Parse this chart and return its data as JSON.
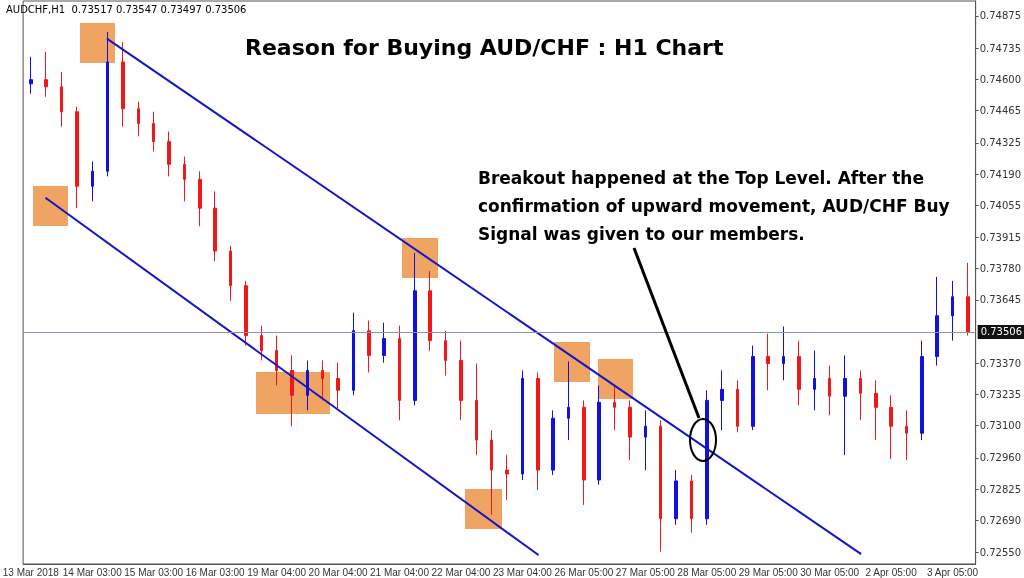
{
  "chart_data": {
    "type": "candlestick",
    "title": "Reason for Buying AUD/CHF : H1 Chart",
    "annotations": [
      "AUDCHF,H1  0.73517 0.73547 0.73497 0.73506",
      "Breakout happened at the Top Level. After the confirmation of upward movement, AUD/CHF Buy Signal was given to our members."
    ],
    "categories": [
      "13 Mar 2018",
      null,
      null,
      null,
      "14 Mar 03:00",
      null,
      null,
      null,
      "15 Mar 03:00",
      null,
      null,
      null,
      "16 Mar 03:00",
      null,
      null,
      null,
      "19 Mar 04:00",
      null,
      null,
      null,
      "20 Mar 04:00",
      null,
      null,
      null,
      "21 Mar 04:00",
      null,
      null,
      null,
      "22 Mar 04:00",
      null,
      null,
      null,
      "23 Mar 04:00",
      null,
      null,
      null,
      "26 Mar 05:00",
      null,
      null,
      null,
      "27 Mar 05:00",
      null,
      null,
      null,
      "28 Mar 05:00",
      null,
      null,
      null,
      "29 Mar 05:00",
      null,
      null,
      null,
      "30 Mar 05:00",
      null,
      null,
      null,
      "2 Apr 05:00",
      null,
      null,
      null,
      "3 Apr 05:00",
      null
    ],
    "colors": [
      "#1010e0",
      "#f01818",
      "#f01818",
      "#f01818",
      "#1010e0",
      "#1010e0",
      "#f01818",
      "#f01818",
      "#f01818",
      "#f01818",
      "#f01818",
      "#f01818",
      "#f01818",
      "#f01818",
      "#f01818",
      "#f01818",
      "#f01818",
      "#f01818",
      "#1010e0",
      "#f01818",
      "#f01818",
      "#1010e0",
      "#f01818",
      "#1010e0",
      "#f01818",
      "#1010e0",
      "#f01818",
      "#f01818",
      "#f01818",
      "#f01818",
      "#f01818",
      "#f01818",
      "#1010e0",
      "#f01818",
      "#1010e0",
      "#1010e0",
      "#f01818",
      "#1010e0",
      "#f01818",
      "#f01818",
      "#1010e0",
      "#f01818",
      "#1010e0",
      "#f01818",
      "#1010e0",
      "#1010e0",
      "#f01818",
      "#1010e0",
      "#f01818",
      "#1010e0",
      "#f01818",
      "#1010e0",
      "#f01818",
      "#1010e0",
      "#f01818",
      "#f01818",
      "#f01818",
      "#f01818",
      "#1010e0",
      "#1010e0",
      "#1010e0",
      "#f01818"
    ],
    "ohlc": [
      [
        0.74581,
        0.74698,
        0.74538,
        0.74599
      ],
      [
        0.74599,
        0.74719,
        0.74525,
        0.74568
      ],
      [
        0.74568,
        0.74633,
        0.74396,
        0.7446
      ],
      [
        0.7446,
        0.74482,
        0.74042,
        0.74137
      ],
      [
        0.74137,
        0.74245,
        0.74072,
        0.74202
      ],
      [
        0.74202,
        0.74806,
        0.7418,
        0.74676
      ],
      [
        0.74676,
        0.74762,
        0.74396,
        0.74473
      ],
      [
        0.74473,
        0.74504,
        0.74353,
        0.74409
      ],
      [
        0.74409,
        0.7446,
        0.74288,
        0.74331
      ],
      [
        0.74331,
        0.74374,
        0.7418,
        0.74232
      ],
      [
        0.74232,
        0.74266,
        0.74072,
        0.74167
      ],
      [
        0.74167,
        0.74202,
        0.73964,
        0.74042
      ],
      [
        0.74042,
        0.74115,
        0.73813,
        0.73856
      ],
      [
        0.73856,
        0.73878,
        0.73641,
        0.73706
      ],
      [
        0.73706,
        0.73727,
        0.73447,
        0.7349
      ],
      [
        0.7349,
        0.73533,
        0.73382,
        0.73425
      ],
      [
        0.73425,
        0.7349,
        0.73274,
        0.73339
      ],
      [
        0.73339,
        0.73404,
        0.73097,
        0.73231
      ],
      [
        0.73231,
        0.73382,
        0.73166,
        0.73339
      ],
      [
        0.73339,
        0.73382,
        0.73209,
        0.73304
      ],
      [
        0.73304,
        0.73373,
        0.73175,
        0.73253
      ],
      [
        0.73253,
        0.73589,
        0.73231,
        0.73511
      ],
      [
        0.73511,
        0.73555,
        0.7333,
        0.73404
      ],
      [
        0.73404,
        0.73546,
        0.73373,
        0.73477
      ],
      [
        0.73477,
        0.73533,
        0.73123,
        0.73209
      ],
      [
        0.73209,
        0.73848,
        0.73188,
        0.73684
      ],
      [
        0.73684,
        0.7377,
        0.73425,
        0.73468
      ],
      [
        0.73468,
        0.73511,
        0.73317,
        0.73382
      ],
      [
        0.73382,
        0.73468,
        0.73123,
        0.73209
      ],
      [
        0.73209,
        0.73369,
        0.72972,
        0.73037
      ],
      [
        0.73037,
        0.7308,
        0.72713,
        0.72907
      ],
      [
        0.72907,
        0.72972,
        0.72778,
        0.7289
      ],
      [
        0.7289,
        0.73339,
        0.72864,
        0.73304
      ],
      [
        0.73304,
        0.7333,
        0.72821,
        0.72907
      ],
      [
        0.72907,
        0.73166,
        0.72886,
        0.73132
      ],
      [
        0.73132,
        0.73378,
        0.73037,
        0.73179
      ],
      [
        0.73179,
        0.73209,
        0.72756,
        0.72864
      ],
      [
        0.72864,
        0.73274,
        0.72843,
        0.73201
      ],
      [
        0.73201,
        0.73274,
        0.7308,
        0.73179
      ],
      [
        0.73179,
        0.73209,
        0.72951,
        0.7305
      ],
      [
        0.7305,
        0.73166,
        0.72907,
        0.73097
      ],
      [
        0.73097,
        0.73123,
        0.72554,
        0.72696
      ],
      [
        0.72696,
        0.72907,
        0.7267,
        0.7286
      ],
      [
        0.7286,
        0.72886,
        0.72636,
        0.72696
      ],
      [
        0.72696,
        0.73253,
        0.7267,
        0.73209
      ],
      [
        0.73209,
        0.73339,
        0.7308,
        0.73257
      ],
      [
        0.73257,
        0.73296,
        0.73071,
        0.73097
      ],
      [
        0.73097,
        0.73447,
        0.7308,
        0.73399
      ],
      [
        0.73399,
        0.73498,
        0.73253,
        0.73369
      ],
      [
        0.73369,
        0.73529,
        0.73296,
        0.73399
      ],
      [
        0.73399,
        0.73468,
        0.73188,
        0.73257
      ],
      [
        0.73257,
        0.73425,
        0.73166,
        0.73304
      ],
      [
        0.73304,
        0.7336,
        0.73145,
        0.73227
      ],
      [
        0.73227,
        0.73404,
        0.72972,
        0.73304
      ],
      [
        0.73304,
        0.73339,
        0.73123,
        0.7324
      ],
      [
        0.7324,
        0.73296,
        0.73037,
        0.73179
      ],
      [
        0.73179,
        0.73231,
        0.72955,
        0.73097
      ],
      [
        0.73097,
        0.73166,
        0.72951,
        0.73067
      ],
      [
        0.73067,
        0.73468,
        0.73037,
        0.73399
      ],
      [
        0.73399,
        0.73744,
        0.7336,
        0.73576
      ],
      [
        0.73576,
        0.73727,
        0.73468,
        0.73658
      ],
      [
        0.73658,
        0.73805,
        0.7349,
        0.73506
      ]
    ],
    "series": [
      {
        "type": "line",
        "color": "#1414c8",
        "values": [
          null,
          null,
          null,
          null,
          null,
          0.74775,
          null,
          null,
          null,
          null,
          null,
          null,
          null,
          null,
          null,
          null,
          null,
          null,
          null,
          null,
          null,
          null,
          null,
          null,
          null,
          null,
          null,
          null,
          null,
          null,
          null,
          null,
          null,
          null,
          null,
          null,
          null,
          null,
          null,
          null,
          null,
          null,
          null,
          null,
          null,
          null,
          null,
          null,
          null,
          null,
          null,
          null,
          null,
          null,
          0.72545,
          null,
          null,
          null,
          null,
          null,
          null,
          null
        ]
      },
      {
        "type": "line",
        "color": "#1414c8",
        "values": [
          null,
          0.74085,
          null,
          null,
          null,
          null,
          null,
          null,
          null,
          null,
          null,
          null,
          null,
          null,
          null,
          null,
          null,
          null,
          null,
          null,
          null,
          null,
          null,
          null,
          null,
          null,
          null,
          null,
          null,
          null,
          null,
          null,
          null,
          0.72541,
          null,
          null,
          null,
          null,
          null,
          null,
          null,
          null,
          null,
          null,
          null,
          null,
          null,
          null,
          null,
          null,
          null,
          null,
          null,
          null,
          null,
          null,
          null,
          null,
          null,
          null,
          null,
          null
        ]
      }
    ],
    "ylim": [
      0.725,
      0.7494
    ],
    "yticks": [
      {
        "value": 0.7255,
        "label": "0.72550"
      },
      {
        "value": 0.7269,
        "label": "0.72690"
      },
      0.72825,
      {
        "value": 0.7296,
        "label": "0.72960"
      },
      {
        "value": 0.731,
        "label": "0.73100"
      },
      0.73235,
      {
        "value": 0.7337,
        "label": "0.73370"
      },
      0.73645,
      {
        "value": 0.7378,
        "label": "0.73780"
      },
      0.73915,
      0.74055,
      {
        "value": 0.7419,
        "label": "0.74190"
      },
      0.74325,
      0.74465,
      {
        "value": 0.746,
        "label": "0.74600"
      },
      0.74735,
      0.74875
    ],
    "ref_lines": [
      {
        "axis": "y",
        "value": 0.73506,
        "label": "0.73506",
        "color": "#8a94a8"
      }
    ],
    "grid": false
  }
}
